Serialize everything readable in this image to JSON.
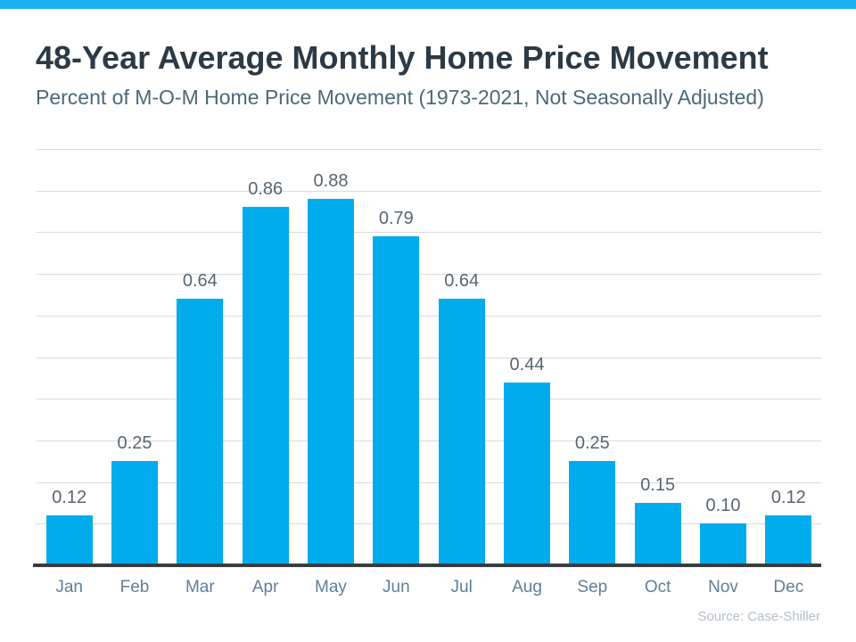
{
  "header": {
    "title": "48-Year Average Monthly Home Price Movement",
    "subtitle": "Percent of M-O-M Home Price Movement (1973-2021, Not Seasonally Adjusted)"
  },
  "footer": {
    "source": "Source: Case-Shiller"
  },
  "colors": {
    "accent_bar": "#1CB2F0",
    "bar": "#00ACEC",
    "title": "#2C3A45",
    "subtitle": "#4D6878",
    "value_label": "#5A6472",
    "month_label": "#5F7E9A",
    "gridline": "#DBDBDB",
    "axis_line": "#393C3F",
    "source": "#B5BEC6"
  },
  "chart_data": {
    "type": "bar",
    "title": "48-Year Average Monthly Home Price Movement",
    "subtitle": "Percent of M-O-M Home Price Movement (1973-2021, Not Seasonally Adjusted)",
    "categories": [
      "Jan",
      "Feb",
      "Mar",
      "Apr",
      "May",
      "Jun",
      "Jul",
      "Aug",
      "Sep",
      "Oct",
      "Nov",
      "Dec"
    ],
    "values": [
      0.12,
      0.25,
      0.64,
      0.86,
      0.88,
      0.79,
      0.64,
      0.44,
      0.25,
      0.15,
      0.1,
      0.12
    ],
    "value_labels": [
      "0.12",
      "0.25",
      "0.64",
      "0.86",
      "0.88",
      "0.79",
      "0.64",
      "0.44",
      "0.25",
      "0.15",
      "0.10",
      "0.12"
    ],
    "xlabel": "",
    "ylabel": "",
    "ylim": [
      0,
      1.0
    ],
    "grid_step": 0.1,
    "grid": true,
    "legend": false,
    "y_tick_labels_shown": false,
    "source": "Source: Case-Shiller"
  }
}
